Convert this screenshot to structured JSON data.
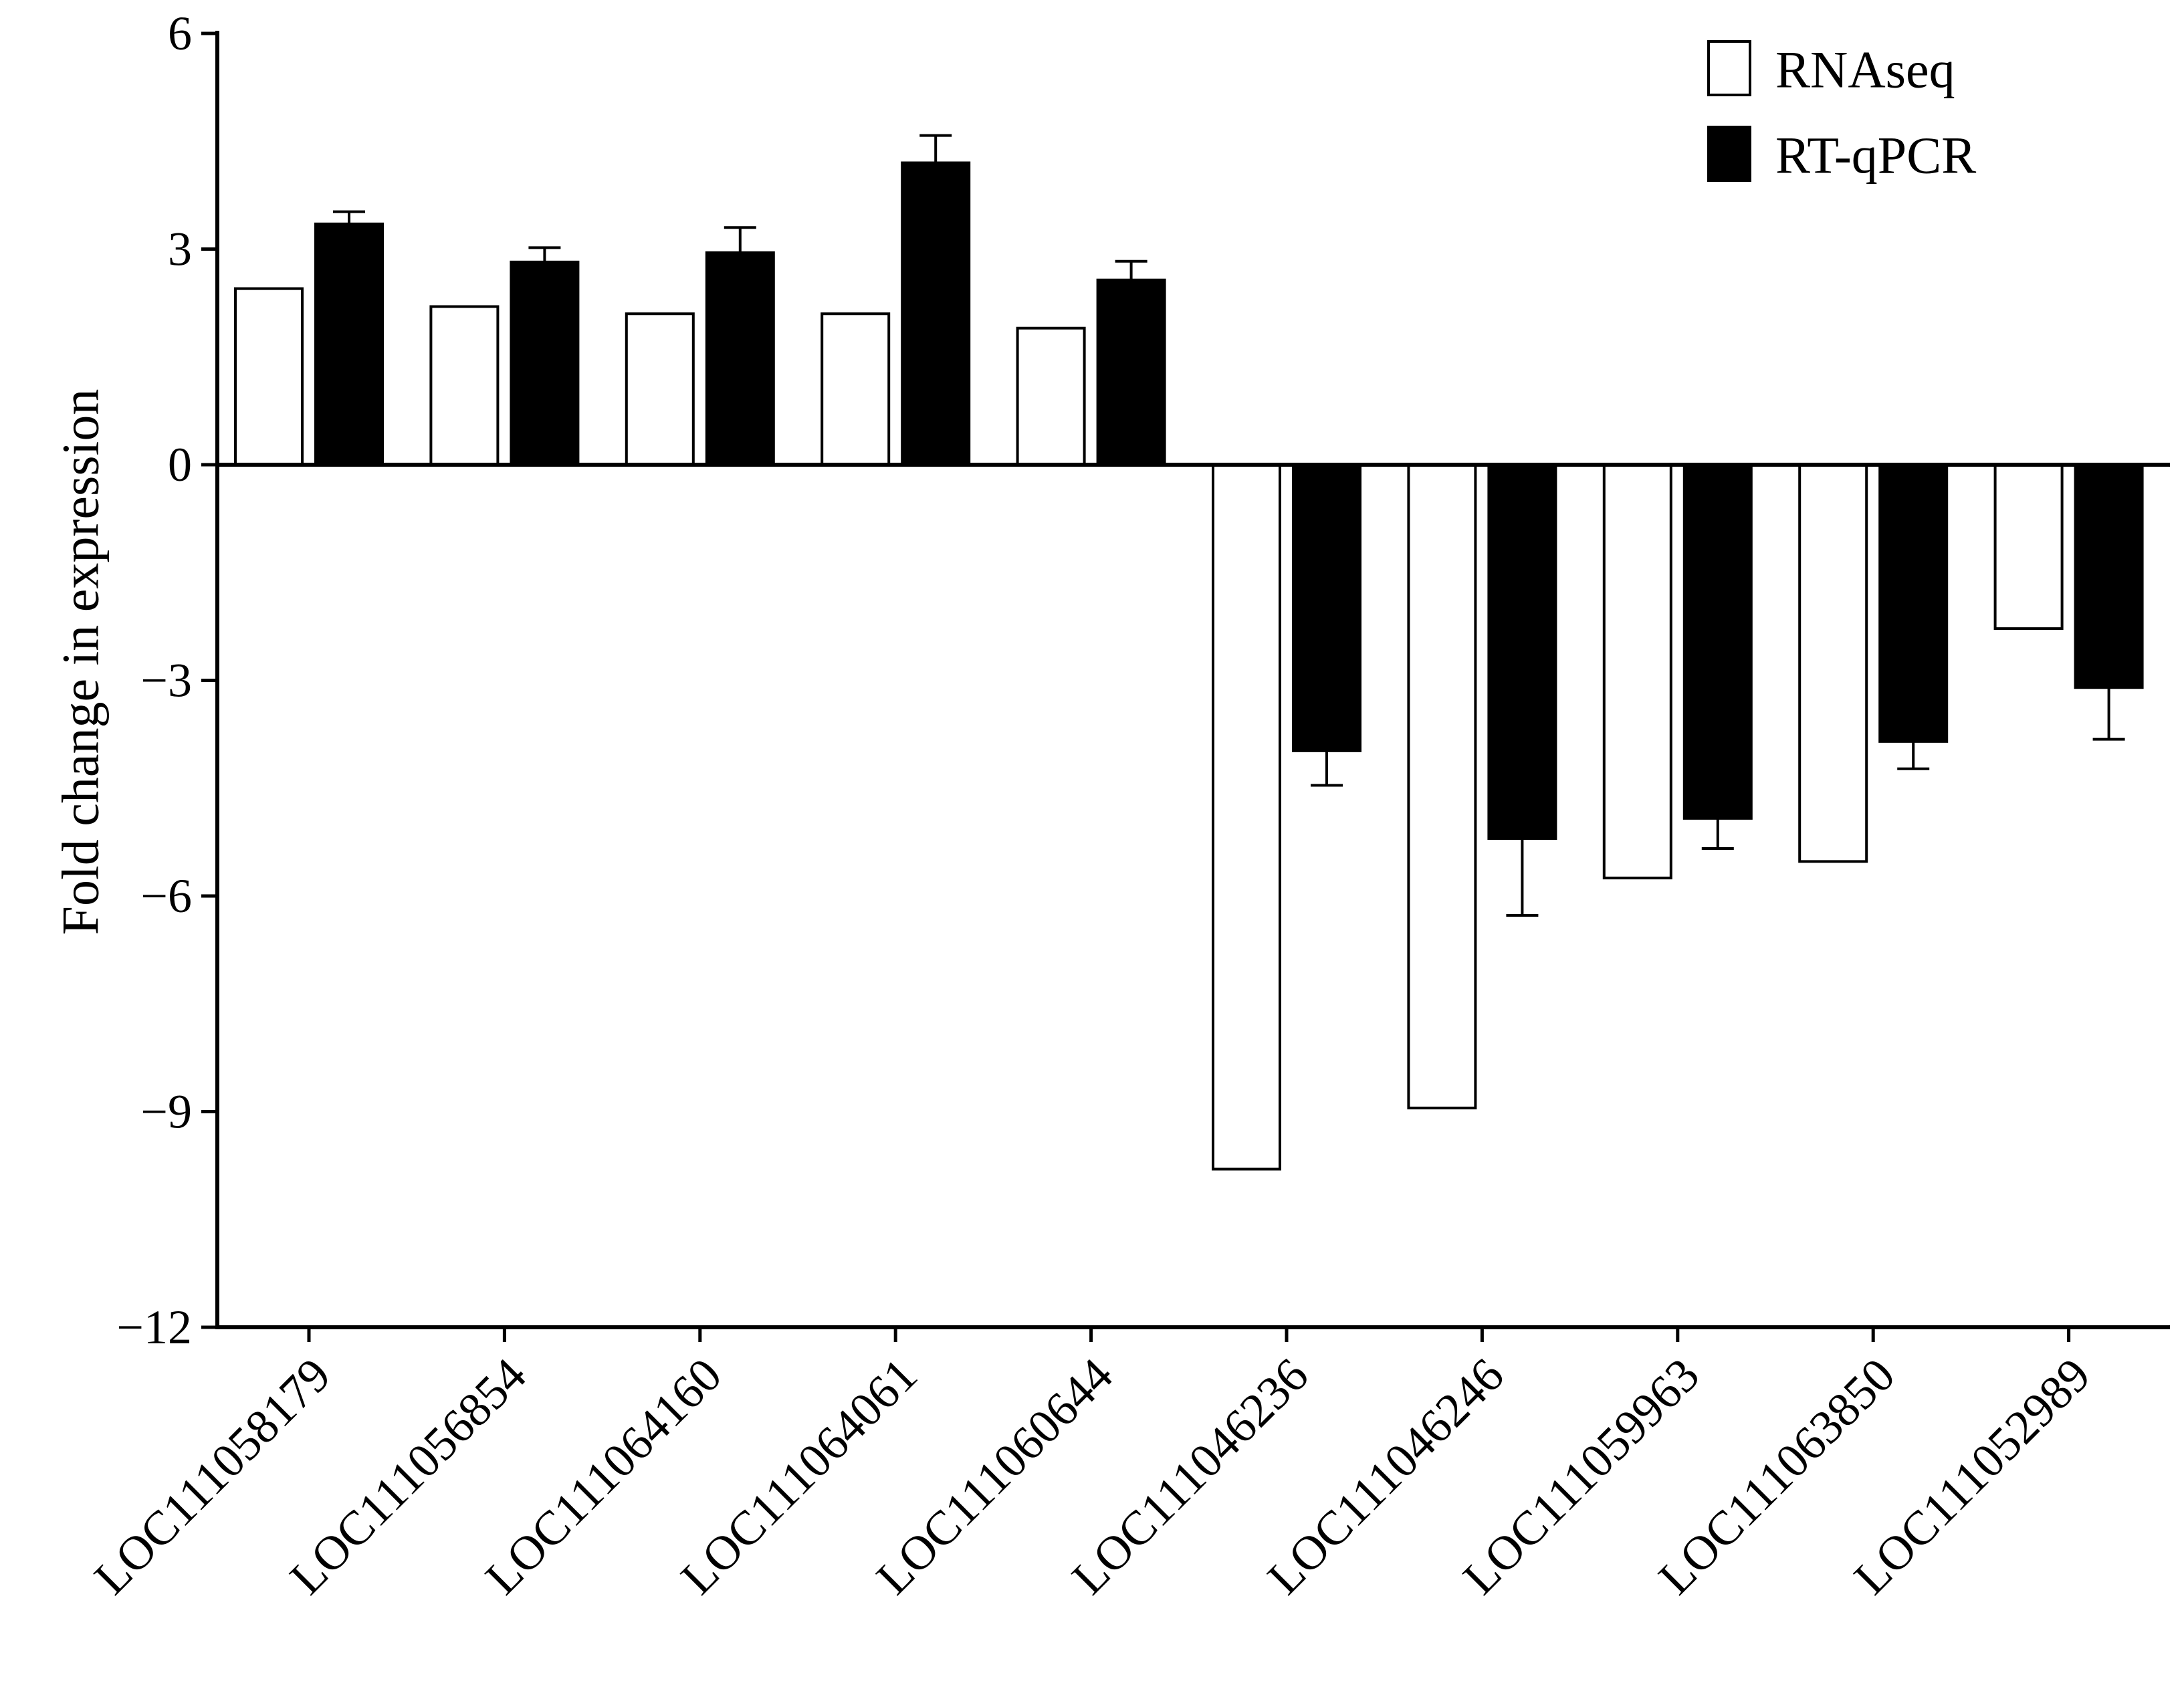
{
  "chart_data": {
    "type": "bar",
    "ylabel": "Fold change in expression",
    "xlabel": "",
    "ylim": [
      -12,
      6
    ],
    "yticks": [
      6,
      3,
      0,
      -3,
      -6,
      -9,
      -12
    ],
    "ytick_labels": [
      "6",
      "3",
      "0",
      "−3",
      "−6",
      "−9",
      "−12"
    ],
    "categories": [
      "LOC111058179",
      "LOC111056854",
      "LOC111064160",
      "LOC111064061",
      "LOC111060644",
      "LOC111046236",
      "LOC111046246",
      "LOC111059963",
      "LOC111063850",
      "LOC111052989"
    ],
    "series": [
      {
        "name": "RNAseq",
        "color": "#ffffff",
        "values": [
          2.45,
          2.2,
          2.1,
          2.1,
          1.9,
          -9.8,
          -8.95,
          -5.75,
          -5.52,
          -2.28
        ],
        "errors": [
          0,
          0,
          0,
          0,
          0,
          0,
          0,
          0,
          0,
          0
        ]
      },
      {
        "name": "RT-qPCR",
        "color": "#000000",
        "values": [
          3.35,
          2.82,
          2.95,
          4.2,
          2.57,
          -3.98,
          -5.2,
          -4.92,
          -3.85,
          -3.1
        ],
        "errors": [
          0.17,
          0.2,
          0.35,
          0.38,
          0.26,
          0.48,
          1.07,
          0.42,
          0.38,
          0.72
        ]
      }
    ],
    "legend": {
      "position": "top-right",
      "entries": [
        "RNAseq",
        "RT-qPCR"
      ]
    }
  }
}
